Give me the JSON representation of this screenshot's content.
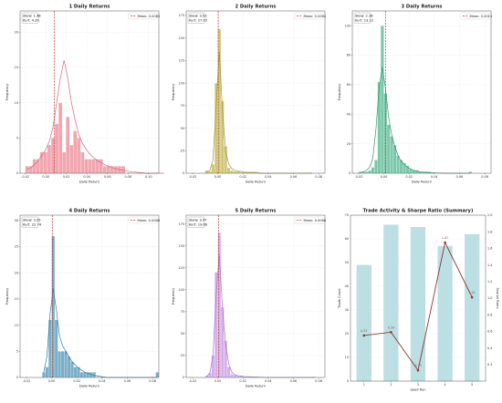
{
  "chart_data": [
    {
      "type": "bar",
      "title": "1 Daily Returns",
      "xlabel": "Daily Return",
      "ylabel": "Frequency",
      "xlim": [
        -0.025,
        0.11
      ],
      "ylim": [
        0,
        23
      ],
      "xticks": [
        -0.02,
        0.0,
        0.02,
        0.04,
        0.06,
        0.08,
        0.1
      ],
      "xtick_labels": [
        "-0.02",
        "0.00",
        "0.02",
        "0.04",
        "0.06",
        "0.08",
        "0.10"
      ],
      "yticks": [
        0,
        5,
        10,
        15,
        20
      ],
      "bin_start": -0.02,
      "bin_width": 0.0036,
      "counts": [
        1,
        1,
        2,
        2,
        3,
        3,
        4,
        5,
        7,
        10,
        3,
        8,
        4,
        6,
        5,
        3,
        2,
        2,
        2,
        2,
        2,
        1,
        1,
        1,
        1,
        1,
        1,
        0,
        0,
        0,
        0,
        0,
        0,
        0,
        0,
        0,
        0,
        0
      ],
      "kde": [
        0.5,
        0.8,
        1.2,
        1.8,
        2.5,
        3.3,
        4.5,
        6.5,
        10,
        13.5,
        16,
        13.5,
        10,
        7.5,
        5.5,
        4.2,
        3.4,
        2.7,
        2.2,
        1.8,
        1.5,
        1.2,
        1.0,
        0.8,
        0.6,
        0.5,
        0.4,
        0.3,
        0.2,
        0.2,
        0.1,
        0.1,
        0,
        0,
        0,
        0,
        0,
        0
      ],
      "mean": 0.0083,
      "mean_label": "Mean: 0.0083",
      "skew_label": "Skew: 1.48",
      "kurt_label": "Kurt: 4.39",
      "show_stats": true,
      "color": "#ee8896",
      "line_color": "#d9657b",
      "grid": true,
      "legend": "top-right"
    },
    {
      "type": "bar",
      "title": "2 Daily Returns",
      "xlabel": "Daily Return",
      "ylabel": "Frequency",
      "xlim": [
        -0.025,
        0.085
      ],
      "ylim": [
        0,
        180
      ],
      "xticks": [
        -0.02,
        0.0,
        0.02,
        0.04,
        0.06,
        0.08
      ],
      "xtick_labels": [
        "-0.02",
        "0.00",
        "0.02",
        "0.04",
        "0.06",
        "0.08"
      ],
      "yticks": [
        0,
        25,
        50,
        75,
        100,
        125,
        150,
        175
      ],
      "bin_start": -0.01,
      "bin_width": 0.0025,
      "counts": [
        3,
        2,
        10,
        100,
        160,
        80,
        30,
        6,
        3,
        2,
        2,
        1,
        1,
        1,
        1,
        1,
        0,
        0,
        0,
        0,
        0,
        0,
        0,
        0,
        0,
        0,
        0,
        0,
        0,
        0,
        0,
        0,
        0,
        1
      ],
      "kde": [
        1,
        3,
        15,
        75,
        135,
        70,
        25,
        10,
        5,
        3,
        2,
        2,
        1,
        1,
        1,
        1,
        1,
        0,
        0,
        0,
        0,
        0,
        0,
        0,
        0,
        0,
        0,
        0,
        0,
        0,
        0,
        0,
        0,
        0
      ],
      "mean": 0.0004,
      "mean_label": "Mean: 0.0004",
      "skew_label": "Skew: 3.53",
      "kurt_label": "Kurt: 27.95",
      "show_stats": true,
      "color": "#bdb54f",
      "line_color": "#9d9832",
      "grid": true,
      "legend": "top-right"
    },
    {
      "type": "bar",
      "title": "3 Daily Returns",
      "xlabel": "Daily Return",
      "ylabel": "Frequency",
      "xlim": [
        -0.025,
        0.085
      ],
      "ylim": [
        0,
        110
      ],
      "xticks": [
        -0.02,
        0.0,
        0.02,
        0.04,
        0.06,
        0.08
      ],
      "xtick_labels": [
        "-0.02",
        "0.00",
        "0.02",
        "0.04",
        "0.06",
        "0.08"
      ],
      "yticks": [
        0,
        20,
        40,
        60,
        80,
        100
      ],
      "bin_start": -0.02,
      "bin_width": 0.0025,
      "counts": [
        1,
        1,
        1,
        2,
        4,
        9,
        62,
        100,
        54,
        33,
        25,
        19,
        12,
        9,
        7,
        5,
        3,
        2,
        2,
        1,
        1,
        1,
        1,
        0,
        0,
        0,
        0,
        0,
        0,
        0,
        0,
        0,
        0,
        0,
        0,
        1
      ],
      "kde": [
        0.5,
        1,
        2,
        4,
        10,
        30,
        58,
        72,
        58,
        38,
        26,
        18,
        12,
        8,
        6,
        4,
        3,
        2,
        1.5,
        1,
        0.8,
        0.6,
        0.4,
        0.3,
        0.2,
        0.1,
        0.1,
        0,
        0,
        0,
        0,
        0,
        0,
        0,
        0,
        0
      ],
      "mean": 0.0013,
      "mean_label": "Mean: 0.0013",
      "skew_label": "Skew: 2.16",
      "kurt_label": "Kurt: 13.12",
      "show_stats": true,
      "color": "#4fb58f",
      "line_color": "#2f9a73",
      "grid": true,
      "legend": "top-right"
    },
    {
      "type": "bar",
      "title": "4 Daily Returns",
      "xlabel": "Daily Return",
      "ylabel": "Frequency",
      "xlim": [
        -0.025,
        0.085
      ],
      "ylim": [
        0,
        31
      ],
      "xticks": [
        -0.02,
        0.0,
        0.02,
        0.04,
        0.06,
        0.08
      ],
      "xtick_labels": [
        "-0.02",
        "0.00",
        "0.02",
        "0.04",
        "0.06",
        "0.08"
      ],
      "yticks": [
        0,
        5,
        10,
        15,
        20,
        25,
        30
      ],
      "bin_start": -0.0075,
      "bin_width": 0.0025,
      "counts": [
        1,
        2,
        11,
        27,
        11,
        5,
        5,
        5,
        4,
        3,
        2,
        2,
        1,
        1,
        1,
        1,
        1,
        0,
        0,
        0,
        0,
        0,
        0,
        0,
        0,
        0,
        0,
        0,
        0,
        0,
        0,
        0,
        0,
        0,
        0,
        0,
        1
      ],
      "kde": [
        1,
        4,
        12,
        17,
        13,
        8,
        6,
        5,
        4,
        3,
        2.4,
        1.8,
        1.4,
        1,
        0.8,
        0.6,
        0.4,
        0.3,
        0.2,
        0.1,
        0,
        0,
        0,
        0,
        0,
        0,
        0,
        0,
        0,
        0,
        0,
        0,
        0,
        0,
        0,
        0,
        0
      ],
      "mean": 0.0006,
      "mean_label": "Mean: 0.0006",
      "skew_label": "Skew: 3.25",
      "kurt_label": "Kurt: 22.74",
      "show_stats": true,
      "color": "#4b93b6",
      "line_color": "#2e7aa0",
      "grid": true,
      "legend": "top-right"
    },
    {
      "type": "bar",
      "title": "5 Daily Returns",
      "xlabel": "Daily Return",
      "ylabel": "Frequency",
      "xlim": [
        -0.025,
        0.085
      ],
      "ylim": [
        0,
        185
      ],
      "xticks": [
        -0.02,
        0.0,
        0.02,
        0.04,
        0.06,
        0.08
      ],
      "xtick_labels": [
        "-0.02",
        "0.00",
        "0.02",
        "0.04",
        "0.06",
        "0.08"
      ],
      "yticks": [
        0,
        25,
        50,
        75,
        100,
        125,
        150,
        175
      ],
      "bin_start": -0.01,
      "bin_width": 0.0025,
      "counts": [
        2,
        5,
        25,
        120,
        165,
        80,
        42,
        12,
        4,
        3,
        2,
        2,
        1,
        1,
        1,
        1,
        1,
        0,
        0,
        0,
        0,
        0,
        0,
        0,
        0,
        0,
        0,
        0,
        0,
        0,
        0,
        0,
        0,
        0,
        1
      ],
      "kde": [
        1,
        5,
        25,
        95,
        140,
        80,
        38,
        15,
        6,
        3,
        2,
        1.5,
        1,
        1,
        0.8,
        0.6,
        0.4,
        0.3,
        0.2,
        0.1,
        0,
        0,
        0,
        0,
        0,
        0,
        0,
        0,
        0,
        0,
        0,
        0,
        0,
        0,
        0
      ],
      "mean": 0.0008,
      "mean_label": "Mean: 0.0008",
      "skew_label": "Skew: 3.97",
      "kurt_label": "Kurt: 19.66",
      "show_stats": true,
      "color": "#c797e4",
      "line_color": "#a671c8",
      "grid": true,
      "legend": "top-right"
    },
    {
      "type": "bar",
      "title": "Trade Activity & Sharpe Ratio (Summary)",
      "xlabel": "Seed Run",
      "ylabel": "Trade Count",
      "y2label": "Sharpe Ratio",
      "categories": [
        "1",
        "2",
        "3",
        "4",
        "5"
      ],
      "trade_counts": [
        49,
        66,
        65,
        57,
        62
      ],
      "sharpe": [
        0.55,
        0.59,
        0.13,
        1.67,
        1.01
      ],
      "sharpe_labels": [
        "0.55",
        "0.59",
        "0.13",
        "1.67",
        "1.01"
      ],
      "ylim": [
        0,
        70
      ],
      "y2lim": [
        0.0,
        2.0
      ],
      "yticks": [
        0,
        10,
        20,
        30,
        40,
        50,
        60,
        70
      ],
      "y2ticks": [
        0.2,
        0.4,
        0.6,
        0.8,
        1.0,
        1.2,
        1.4,
        1.6,
        1.8,
        2.0
      ],
      "bar_color": "#b4dbe0",
      "line_color": "#8b3a2c",
      "y2_color": "#c06565",
      "grid": true
    }
  ]
}
